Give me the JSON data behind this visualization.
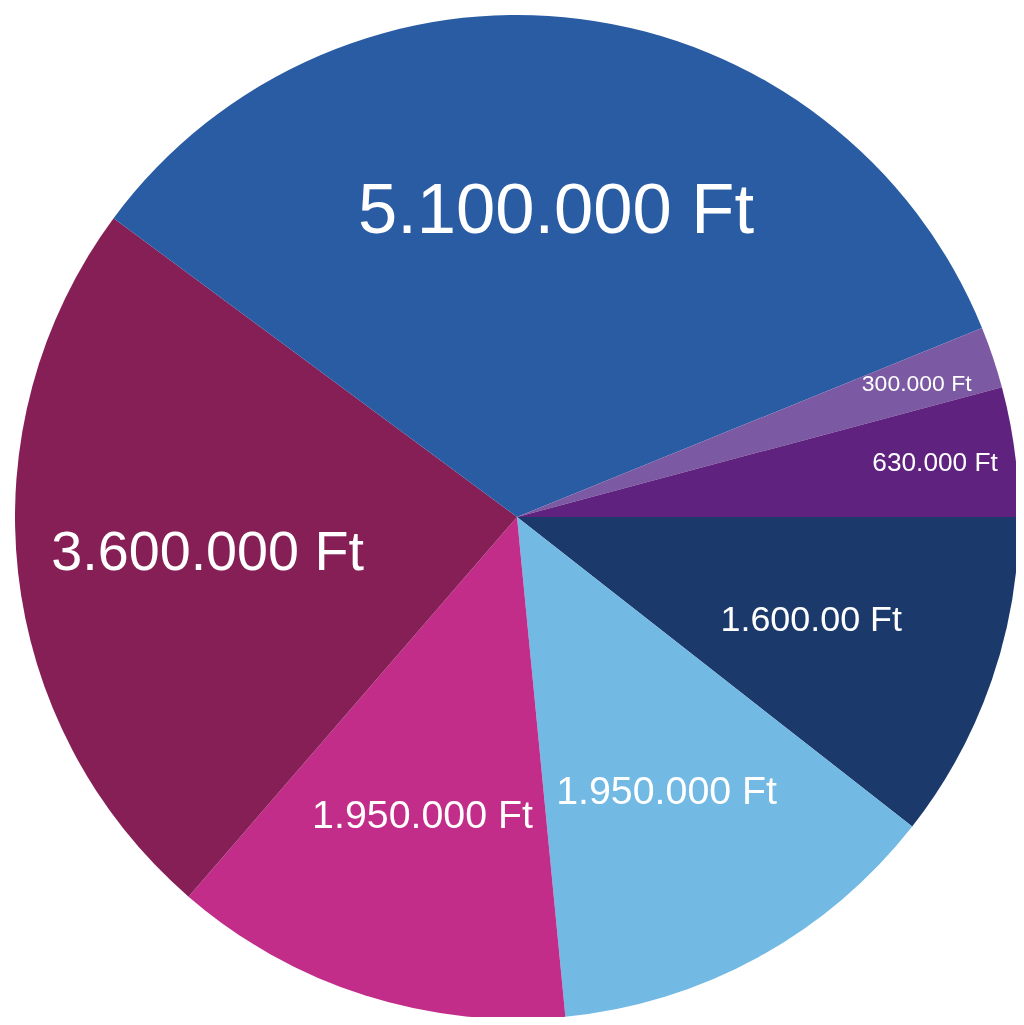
{
  "chart_data": {
    "type": "pie",
    "categories": [
      null,
      null,
      null,
      null,
      null,
      null,
      null
    ],
    "values": [
      1600000,
      1950000,
      1950000,
      3600000,
      5100000,
      300000,
      630000
    ],
    "colors": [
      "#1b3a6b",
      "#72b9e4",
      "#c22d8a",
      "#861f55",
      "#2a5ca4",
      "#7b59a3",
      "#5f227e"
    ],
    "value_labels": [
      "1.600.00 Ft",
      "1.950.000 Ft",
      "1.950.000 Ft",
      "3.600.000 Ft",
      "5.100.000 Ft",
      "300.000 Ft",
      "630.000 Ft"
    ]
  }
}
